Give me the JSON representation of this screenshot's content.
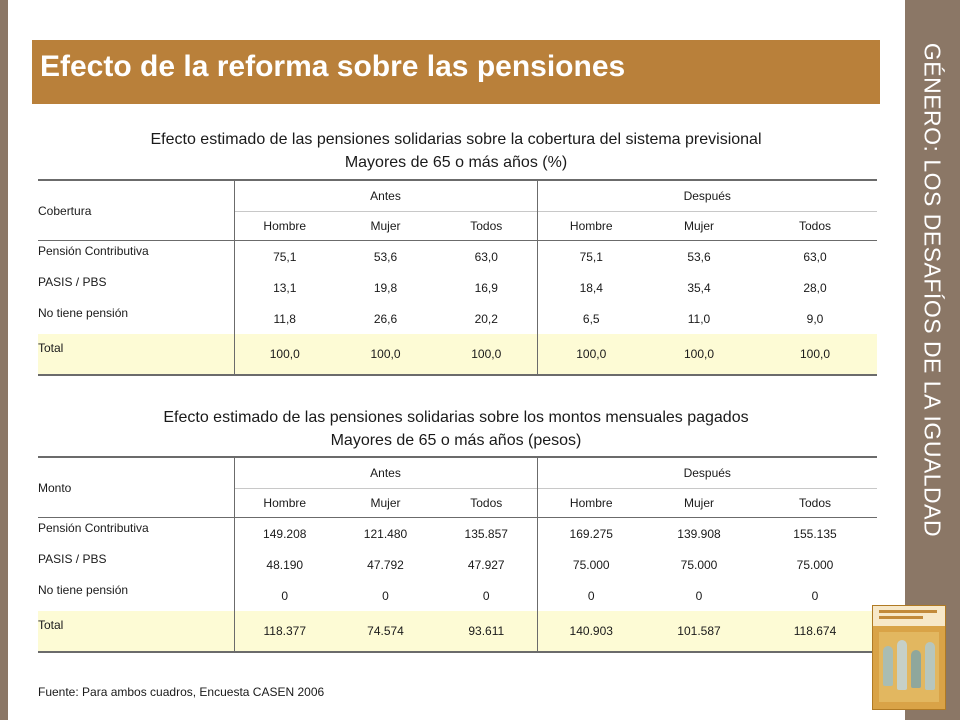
{
  "header": {
    "title": "Efecto de la reforma sobre las pensiones"
  },
  "side": {
    "title": "GÉNERO: LOS DESAFÍOS DE LA IGUALDAD"
  },
  "table1": {
    "caption_line1": "Efecto estimado de las pensiones solidarias sobre la cobertura del sistema previsional",
    "caption_line2": "Mayores de 65 o más años (%)",
    "row_header": "Cobertura",
    "group_antes": "Antes",
    "group_despues": "Después",
    "sub": [
      "Hombre",
      "Mujer",
      "Todos",
      "Hombre",
      "Mujer",
      "Todos"
    ],
    "rows": [
      {
        "label": "Pensión Contributiva",
        "values": [
          "75,1",
          "53,6",
          "63,0",
          "75,1",
          "53,6",
          "63,0"
        ]
      },
      {
        "label": "PASIS / PBS",
        "values": [
          "13,1",
          "19,8",
          "16,9",
          "18,4",
          "35,4",
          "28,0"
        ]
      },
      {
        "label": "No tiene pensión",
        "values": [
          "11,8",
          "26,6",
          "20,2",
          "6,5",
          "11,0",
          "9,0"
        ]
      },
      {
        "label": "Total",
        "values": [
          "100,0",
          "100,0",
          "100,0",
          "100,0",
          "100,0",
          "100,0"
        ]
      }
    ]
  },
  "table2": {
    "caption_line1": "Efecto estimado de las pensiones solidarias sobre los montos mensuales pagados",
    "caption_line2": "Mayores de 65 o más años (pesos)",
    "row_header": "Monto",
    "group_antes": "Antes",
    "group_despues": "Después",
    "sub": [
      "Hombre",
      "Mujer",
      "Todos",
      "Hombre",
      "Mujer",
      "Todos"
    ],
    "rows": [
      {
        "label": "Pensión Contributiva",
        "values": [
          "149.208",
          "121.480",
          "135.857",
          "169.275",
          "139.908",
          "155.135"
        ]
      },
      {
        "label": "PASIS / PBS",
        "values": [
          "48.190",
          "47.792",
          "47.927",
          "75.000",
          "75.000",
          "75.000"
        ]
      },
      {
        "label": "No tiene pensión",
        "values": [
          "0",
          "0",
          "0",
          "0",
          "0",
          "0"
        ]
      },
      {
        "label": "Total",
        "values": [
          "118.377",
          "74.574",
          "93.611",
          "140.903",
          "101.587",
          "118.674"
        ]
      }
    ]
  },
  "footer": {
    "source": "Fuente: Para ambos cuadros, Encuesta CASEN 2006"
  }
}
